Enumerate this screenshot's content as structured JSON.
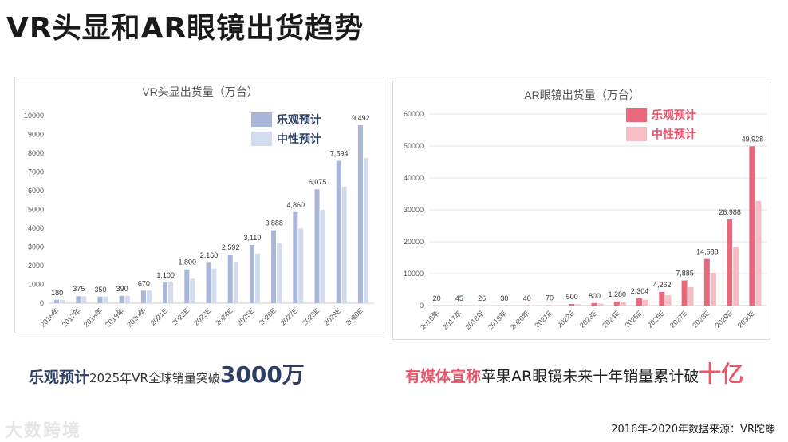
{
  "page": {
    "title": "VR头显和AR眼镜出货趋势",
    "caption_left": {
      "highlight": "乐观预计",
      "text": "2025年VR全球销量突破",
      "number": "3000万"
    },
    "caption_right": {
      "highlight": "有媒体宣称",
      "text": "苹果AR眼镜未来十年销量累计破",
      "number": "十亿"
    },
    "logo_text": "大数跨境",
    "source": "2016年-2020年数据来源：VR陀螺"
  },
  "colors": {
    "vr_optimistic": "#aab6d8",
    "vr_neutral": "#d3dbee",
    "ar_optimistic": "#e9687c",
    "ar_neutral": "#f7bcc4",
    "legend_text_vr": "#2f3f63",
    "legend_text_ar": "#e8566c"
  },
  "chart_data": [
    {
      "type": "bar",
      "title": "VR头显出货量（万台）",
      "categories": [
        "2016年",
        "2017年",
        "2018年",
        "2019年",
        "2020年",
        "2021E",
        "2022E",
        "2023E",
        "2024E",
        "2025E",
        "2026E",
        "2027E",
        "2028E",
        "2029E",
        "2030E"
      ],
      "series": [
        {
          "name": "乐观预计",
          "values": [
            180,
            375,
            350,
            390,
            670,
            1100,
            1800,
            2160,
            2592,
            3110,
            3888,
            4860,
            6075,
            7594,
            9492
          ]
        },
        {
          "name": "中性预计",
          "values": [
            180,
            375,
            350,
            390,
            670,
            1100,
            1300,
            1850,
            2220,
            2650,
            3200,
            3990,
            4980,
            6200,
            7750
          ]
        }
      ],
      "data_labels": [
        "180",
        "375",
        "350",
        "390",
        "670",
        "1,100",
        "1,800",
        "2,160",
        "2,592",
        "3,110",
        "3,888",
        "4,860",
        "6,075",
        "7,594",
        "9,492"
      ],
      "ylim": [
        0,
        10000
      ],
      "yticks": [
        "0",
        "1000",
        "2000",
        "3000",
        "4000",
        "5000",
        "6000",
        "7000",
        "8000",
        "9000",
        "10000"
      ],
      "legend_position": "top-right",
      "grid": false
    },
    {
      "type": "bar",
      "title": "AR眼镜出货量（万台）",
      "categories": [
        "2016年",
        "2017年",
        "2018年",
        "2019年",
        "2020年",
        "2021E",
        "2022E",
        "2023E",
        "2024E",
        "2025E",
        "2026E",
        "2027E",
        "2028E",
        "2029E",
        "2030E"
      ],
      "series": [
        {
          "name": "乐观预计",
          "values": [
            20,
            45,
            26,
            30,
            40,
            70,
            500,
            800,
            1280,
            2304,
            4262,
            7885,
            14588,
            26988,
            49928
          ]
        },
        {
          "name": "中性预计",
          "values": [
            20,
            45,
            26,
            30,
            40,
            70,
            380,
            600,
            1000,
            1800,
            3200,
            5800,
            10300,
            18400,
            32800
          ]
        }
      ],
      "data_labels": [
        "20",
        "45",
        "26",
        "30",
        "40",
        "70",
        "500",
        "800",
        "1,280",
        "2,304",
        "4,262",
        "7,885",
        "14,588",
        "26,988",
        "49,928"
      ],
      "ylim": [
        0,
        60000
      ],
      "yticks": [
        "0",
        "10000",
        "20000",
        "30000",
        "40000",
        "50000",
        "60000"
      ],
      "legend_position": "top-right",
      "grid": true
    }
  ]
}
